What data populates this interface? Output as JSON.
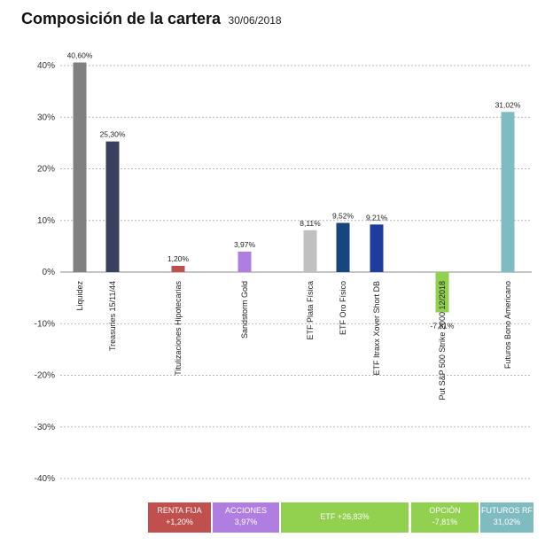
{
  "title": "Composición de la cartera",
  "date": "30/06/2018",
  "colors": {
    "liquidez": "#808080",
    "treasuries": "#3a3f5e",
    "titulizaciones": "#c0504d",
    "sandstorm": "#b07ee0",
    "plata": "#c0c0c0",
    "oro": "#17467f",
    "itraxx": "#1f3b9e",
    "put": "#92d050",
    "futuros": "#7fbcc2",
    "legend_renta_fija": "#c0504d",
    "legend_acciones": "#b07ee0",
    "legend_etf": "#92d050",
    "legend_opcion": "#92d050",
    "legend_futuros": "#7fbcc2"
  },
  "chart_data": {
    "type": "bar",
    "title": "Composición de la cartera",
    "ylim": [
      -40,
      40
    ],
    "yticks": [
      "40%",
      "30%",
      "20%",
      "10%",
      "0%",
      "-10%",
      "-20%",
      "-30%",
      "-40%"
    ],
    "ytick_values": [
      40,
      30,
      20,
      10,
      0,
      -10,
      -20,
      -30,
      -40
    ],
    "grid": true,
    "categories": [
      "Liquidez",
      "Treasuries 15/11/44",
      "Titulizaciones Hipotecarias",
      "Sandstorm Gold",
      "ETF Plata Física",
      "ETF Oro Físico",
      "ETF Itraxx Xover Short DB",
      "Put S&P 500 Strike 2000 12/2018",
      "Futuros Bono Americano"
    ],
    "values": [
      40.6,
      25.3,
      1.2,
      3.97,
      8.11,
      9.52,
      9.21,
      -7.81,
      31.02
    ],
    "labels": [
      "40,60%",
      "25,30%",
      "1,20%",
      "3,97%",
      "8,11%",
      "9,52%",
      "9,21%",
      "-7,81%",
      "31,02%"
    ],
    "color_keys": [
      "liquidez",
      "treasuries",
      "titulizaciones",
      "sandstorm",
      "plata",
      "oro",
      "itraxx",
      "put",
      "futuros"
    ]
  },
  "legend": [
    {
      "line1": "RENTA FIJA",
      "line2": "+1,20%",
      "color_key": "legend_renta_fija"
    },
    {
      "line1": "ACCIONES",
      "line2": "3,97%",
      "color_key": "legend_acciones"
    },
    {
      "line1": "ETF +26,83%",
      "line2": "",
      "color_key": "legend_etf"
    },
    {
      "line1": "OPCIÓN",
      "line2": "-7,81%",
      "color_key": "legend_opcion"
    },
    {
      "line1": "FUTUROS RF",
      "line2": "31,02%",
      "color_key": "legend_futuros"
    }
  ]
}
